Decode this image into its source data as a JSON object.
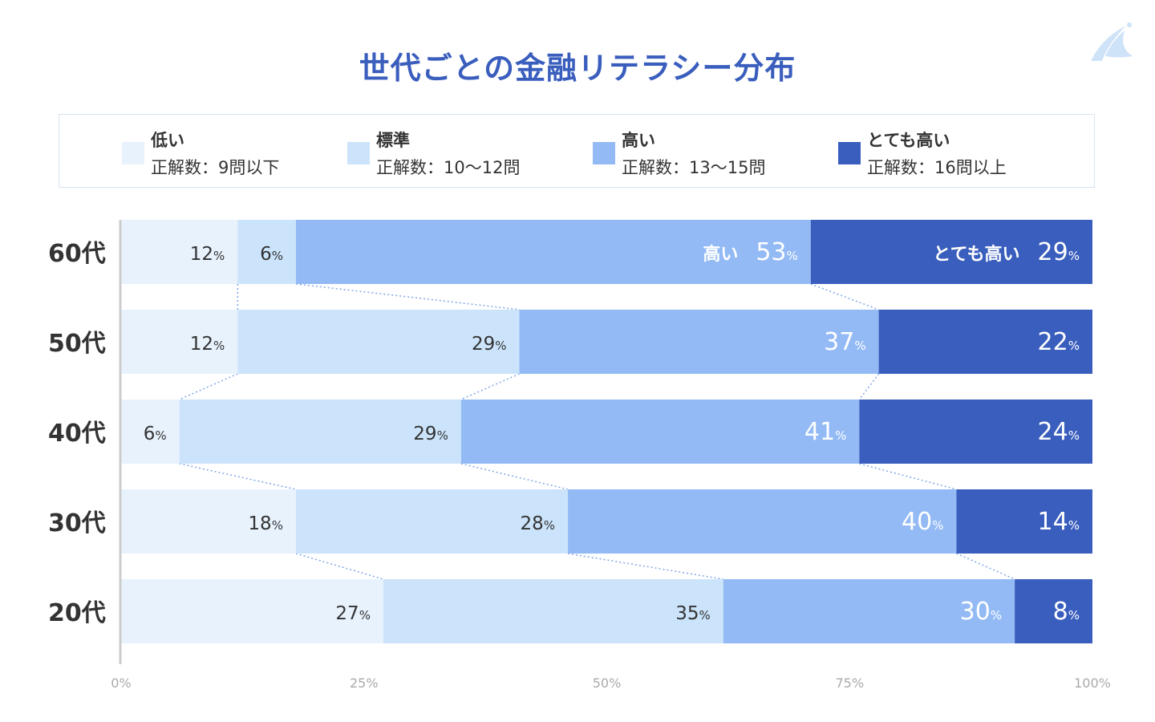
{
  "title": "世代ごとの金融リテラシー分布",
  "legend": [
    {
      "name": "低い",
      "desc": "正解数：9問以下",
      "color": "#e8f2fd"
    },
    {
      "name": "標準",
      "desc": "正解数：10〜12問",
      "color": "#cbe4fb"
    },
    {
      "name": "高い",
      "desc": "正解数：13〜15問",
      "color": "#93baf5"
    },
    {
      "name": "とても高い",
      "desc": "正解数：16問以上",
      "color": "#3a5ebd"
    }
  ],
  "chart_data": {
    "type": "bar",
    "orientation": "horizontal",
    "stacked": true,
    "percent_stacked": true,
    "title": "世代ごとの金融リテラシー分布",
    "categories": [
      "60代",
      "50代",
      "40代",
      "30代",
      "20代"
    ],
    "series": [
      {
        "name": "低い",
        "color": "#e8f2fd",
        "values": [
          12,
          12,
          6,
          18,
          27
        ]
      },
      {
        "name": "標準",
        "color": "#cbe4fb",
        "values": [
          6,
          29,
          29,
          28,
          35
        ]
      },
      {
        "name": "高い",
        "color": "#93baf5",
        "values": [
          53,
          37,
          41,
          40,
          30
        ]
      },
      {
        "name": "とても高い",
        "color": "#3a5ebd",
        "values": [
          29,
          22,
          24,
          14,
          8
        ]
      }
    ],
    "inline_series_labels_row": "60代",
    "value_suffix": "%",
    "xlim": [
      0,
      100
    ],
    "xticks": [
      "0%",
      "25%",
      "50%",
      "75%",
      "100%"
    ],
    "legend_position": "top",
    "connector_lines": true,
    "grid": false
  }
}
